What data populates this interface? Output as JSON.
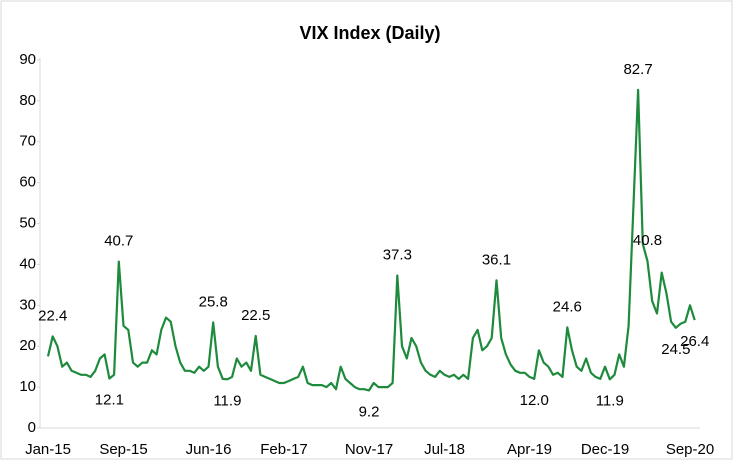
{
  "chart_data": {
    "type": "line",
    "title": "VIX Index (Daily)",
    "categories": [
      "Jan-15",
      null,
      null,
      null,
      null,
      null,
      null,
      null,
      null,
      null,
      null,
      null,
      null,
      null,
      null,
      null,
      "Sep-15",
      null,
      null,
      null,
      null,
      null,
      null,
      null,
      null,
      null,
      null,
      null,
      null,
      null,
      null,
      null,
      null,
      null,
      "Jun-16",
      null,
      null,
      null,
      null,
      null,
      null,
      null,
      null,
      null,
      null,
      null,
      null,
      null,
      null,
      null,
      "Feb-17",
      null,
      null,
      null,
      null,
      null,
      null,
      null,
      null,
      null,
      null,
      null,
      null,
      null,
      null,
      null,
      null,
      null,
      "Nov-17",
      null,
      null,
      null,
      null,
      null,
      null,
      null,
      null,
      null,
      null,
      null,
      null,
      null,
      null,
      null,
      "Jul-18",
      null,
      null,
      null,
      null,
      null,
      null,
      null,
      null,
      null,
      null,
      null,
      null,
      null,
      null,
      null,
      null,
      null,
      "Apr-19",
      null,
      null,
      null,
      null,
      null,
      null,
      null,
      null,
      null,
      null,
      null,
      null,
      null,
      null,
      null,
      "Dec-19",
      null,
      null,
      null,
      null,
      null,
      null,
      null,
      null,
      null,
      null,
      null,
      null,
      null,
      null,
      null,
      null,
      null,
      "Sep-20",
      null
    ],
    "values": [
      17.5,
      22.4,
      20,
      15,
      16,
      14,
      13.5,
      13,
      13,
      12.5,
      14,
      17,
      18,
      12.1,
      13,
      40.7,
      25,
      24,
      16,
      15,
      16,
      16,
      19,
      18,
      24,
      27,
      26,
      20,
      16,
      14,
      14,
      13.5,
      15,
      14,
      15,
      25.8,
      15,
      12,
      11.9,
      12.5,
      17,
      15,
      16,
      14,
      22.5,
      13,
      12.5,
      12,
      11.5,
      11,
      11,
      11.5,
      12,
      12.5,
      15,
      11,
      10.5,
      10.5,
      10.5,
      10,
      11,
      9.5,
      15,
      12,
      11,
      10,
      9.5,
      9.5,
      9.2,
      11,
      10,
      10,
      10,
      11,
      37.3,
      20,
      17,
      22,
      20,
      16,
      14,
      13,
      12.5,
      14,
      13,
      12.5,
      13,
      12,
      13,
      12,
      22,
      24,
      19,
      20,
      22,
      36.1,
      22,
      18,
      15.5,
      14,
      13.5,
      13.5,
      12.5,
      12.0,
      19,
      16,
      15,
      13,
      13.5,
      12.5,
      24.6,
      19,
      15,
      14,
      17,
      13.5,
      12.5,
      12,
      15,
      11.9,
      13,
      18,
      15,
      25,
      54,
      82.7,
      45,
      40.8,
      31,
      28,
      38,
      33,
      26,
      24.5,
      25.5,
      26,
      30,
      26.4
    ],
    "value_labels": [
      null,
      "22.4",
      null,
      null,
      null,
      null,
      null,
      null,
      null,
      null,
      null,
      null,
      null,
      "12.1",
      null,
      "40.7",
      null,
      null,
      null,
      null,
      null,
      null,
      null,
      null,
      null,
      null,
      null,
      null,
      null,
      null,
      null,
      null,
      null,
      null,
      null,
      "25.8",
      null,
      null,
      "11.9",
      null,
      null,
      null,
      null,
      null,
      "22.5",
      null,
      null,
      null,
      null,
      null,
      null,
      null,
      null,
      null,
      null,
      null,
      null,
      null,
      null,
      null,
      null,
      null,
      null,
      null,
      null,
      null,
      null,
      null,
      "9.2",
      null,
      null,
      null,
      null,
      null,
      "37.3",
      null,
      null,
      null,
      null,
      null,
      null,
      null,
      null,
      null,
      null,
      null,
      null,
      null,
      null,
      null,
      null,
      null,
      null,
      null,
      null,
      "36.1",
      null,
      null,
      null,
      null,
      null,
      null,
      null,
      "12.0",
      null,
      null,
      null,
      null,
      null,
      null,
      "24.6",
      null,
      null,
      null,
      null,
      null,
      null,
      null,
      null,
      "11.9",
      null,
      null,
      null,
      null,
      null,
      "82.7",
      null,
      "40.8",
      null,
      null,
      null,
      null,
      null,
      "24.5",
      null,
      null,
      null,
      "26.4"
    ],
    "color": "#1e8a3c",
    "ylim": [
      0,
      90
    ],
    "yticks": [
      0,
      10,
      20,
      30,
      40,
      50,
      60,
      70,
      80,
      90
    ],
    "grid": false
  }
}
